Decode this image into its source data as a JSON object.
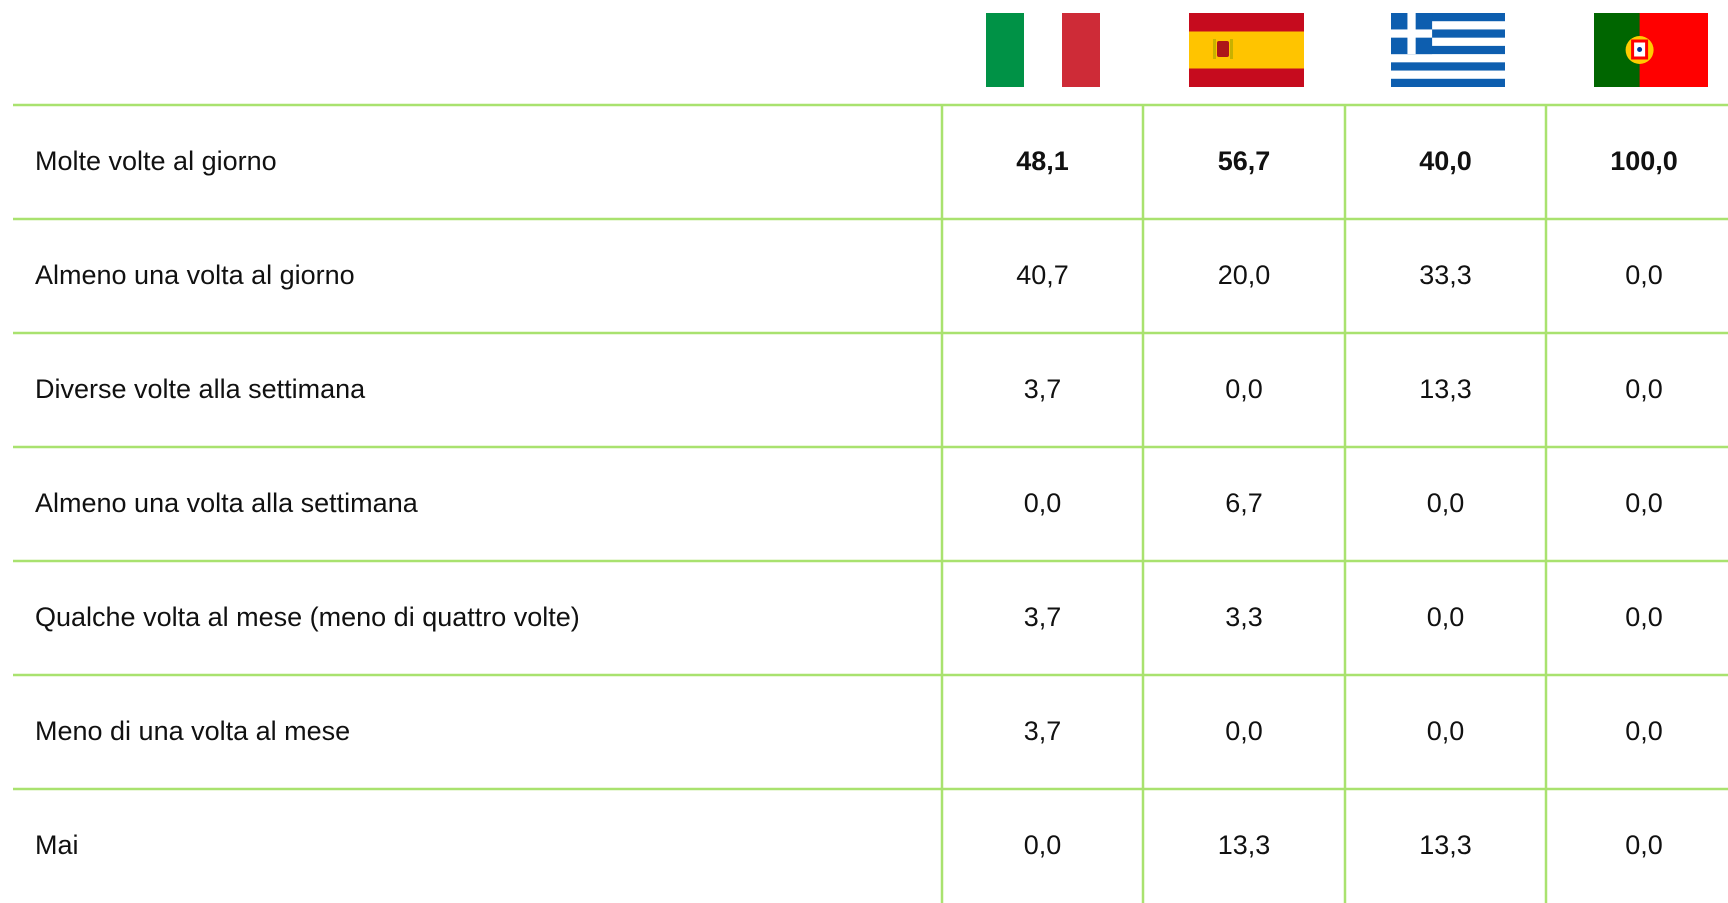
{
  "table": {
    "rows": [
      {
        "label": "Molte volte al giorno",
        "values": [
          "48,1",
          "56,7",
          "40,0",
          "100,0"
        ]
      },
      {
        "label": "Almeno una volta al giorno",
        "values": [
          "40,7",
          "20,0",
          "33,3",
          "0,0"
        ]
      },
      {
        "label": "Diverse volte alla settimana",
        "values": [
          "3,7",
          "0,0",
          "13,3",
          "0,0"
        ]
      },
      {
        "label": "Almeno una volta alla settimana",
        "values": [
          "0,0",
          "6,7",
          "0,0",
          "0,0"
        ]
      },
      {
        "label": "Qualche volta al mese (meno di quattro volte)",
        "values": [
          "3,7",
          "3,3",
          "0,0",
          "0,0"
        ]
      },
      {
        "label": "Meno di una volta al mese",
        "values": [
          "3,7",
          "0,0",
          "0,0",
          "0,0"
        ]
      },
      {
        "label": "Mai",
        "values": [
          "0,0",
          "13,3",
          "13,3",
          "0,0"
        ]
      }
    ]
  }
}
